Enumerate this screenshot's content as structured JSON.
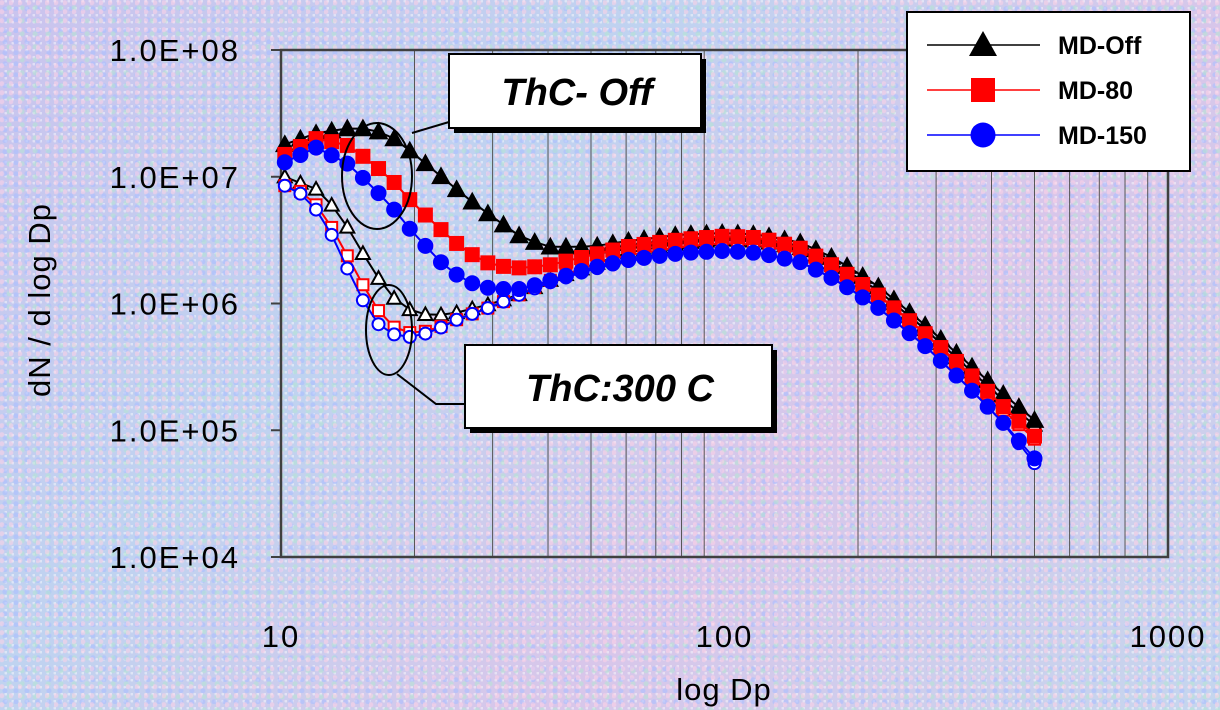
{
  "chart_data": {
    "type": "line",
    "xlabel": "log Dp",
    "ylabel": "dN / d log Dp",
    "x_scale": "log",
    "y_scale": "log",
    "xlim": [
      10,
      1000
    ],
    "ylim": [
      10000,
      100000000
    ],
    "x_tick_values": [
      10,
      100,
      1000
    ],
    "x_tick_labels": [
      "10",
      "100",
      "1000"
    ],
    "y_tick_values": [
      10000,
      100000,
      1000000,
      10000000,
      100000000
    ],
    "y_tick_labels": [
      "1.0E+04",
      "1.0E+05",
      "1.0E+06",
      "1.0E+07",
      "1.0E+08"
    ],
    "grid": "vertical minor lines",
    "legend_position": "top-right",
    "legend": [
      "MD-Off",
      "MD-80",
      "MD-150"
    ],
    "annotations": [
      "ThC- Off",
      "ThC:300 C"
    ],
    "x_range": [
      10.2,
      500
    ],
    "n_points": 49,
    "series": [
      {
        "name": "MD-Off",
        "condition": "ThC- Off",
        "color": "#000000",
        "marker": "triangle",
        "filled": true,
        "knots": {
          "x": [
            10.2,
            12,
            14,
            16,
            18,
            20,
            23,
            26,
            30,
            35,
            40,
            50,
            60,
            80,
            100,
            120,
            150,
            180,
            220,
            280,
            350,
            420,
            500
          ],
          "y": [
            18000000,
            22000000,
            24000000,
            24000000,
            20000000,
            15000000,
            10000000,
            7000000,
            4800000,
            3300000,
            2800000,
            2800000,
            3100000,
            3500000,
            3600000,
            3500000,
            3000000,
            2200000,
            1400000,
            700000,
            350000,
            200000,
            120000
          ]
        }
      },
      {
        "name": "MD-80",
        "condition": "ThC- Off",
        "color": "#ff0000",
        "marker": "square",
        "filled": true,
        "knots": {
          "x": [
            10.2,
            12,
            14,
            16,
            18,
            20,
            23,
            26,
            30,
            35,
            40,
            50,
            60,
            80,
            100,
            120,
            150,
            180,
            220,
            280,
            350,
            420,
            500
          ],
          "y": [
            15000000,
            20000000,
            18000000,
            13000000,
            9000000,
            6000000,
            3800000,
            2600000,
            2000000,
            1900000,
            2000000,
            2400000,
            2800000,
            3200000,
            3400000,
            3300000,
            2700000,
            1900000,
            1200000,
            600000,
            300000,
            160000,
            90000
          ]
        }
      },
      {
        "name": "MD-150",
        "condition": "ThC- Off",
        "color": "#0000ff",
        "marker": "circle",
        "filled": true,
        "knots": {
          "x": [
            10.2,
            12,
            14,
            16,
            18,
            20,
            23,
            26,
            30,
            35,
            40,
            50,
            60,
            80,
            100,
            120,
            150,
            180,
            220,
            280,
            350,
            420,
            500
          ],
          "y": [
            13000000,
            17000000,
            13000000,
            8500000,
            5500000,
            3500000,
            2100000,
            1500000,
            1300000,
            1300000,
            1500000,
            1900000,
            2200000,
            2500000,
            2600000,
            2500000,
            2100000,
            1500000,
            950000,
            480000,
            230000,
            120000,
            60000
          ]
        }
      },
      {
        "name": "MD-Off",
        "condition": "ThC:300 C",
        "color": "#000000",
        "marker": "triangle",
        "filled": false,
        "knots": {
          "x": [
            10.2,
            11,
            12,
            13,
            14,
            15,
            16,
            17,
            18,
            19,
            20,
            22,
            25,
            30,
            35,
            40,
            50,
            60,
            80,
            100,
            120,
            150,
            180,
            220,
            280,
            350,
            420,
            500
          ],
          "y": [
            10000000,
            9000000,
            8000000,
            6000000,
            4200000,
            2800000,
            1900000,
            1400000,
            1100000,
            950000,
            850000,
            800000,
            850000,
            1000000,
            1200000,
            1500000,
            2000000,
            2500000,
            3000000,
            3200000,
            3100000,
            2700000,
            2000000,
            1300000,
            650000,
            320000,
            180000,
            110000
          ]
        }
      },
      {
        "name": "MD-80",
        "condition": "ThC:300 C",
        "color": "#ff0000",
        "marker": "square",
        "filled": false,
        "knots": {
          "x": [
            10.2,
            11,
            12,
            13,
            14,
            15,
            16,
            17,
            18,
            19,
            20,
            22,
            25,
            30,
            35,
            40,
            50,
            60,
            80,
            100,
            120,
            150,
            180,
            220,
            280,
            350,
            420,
            500
          ],
          "y": [
            8500000,
            7800000,
            6000000,
            4000000,
            2500000,
            1600000,
            1050000,
            780000,
            650000,
            600000,
            580000,
            620000,
            750000,
            950000,
            1200000,
            1500000,
            2000000,
            2400000,
            2800000,
            3000000,
            2900000,
            2500000,
            1800000,
            1200000,
            600000,
            290000,
            150000,
            85000
          ]
        }
      },
      {
        "name": "MD-150",
        "condition": "ThC:300 C",
        "color": "#0000ff",
        "marker": "circle",
        "filled": false,
        "knots": {
          "x": [
            10.2,
            11,
            12,
            13,
            14,
            15,
            16,
            17,
            18,
            19,
            20,
            22,
            25,
            30,
            35,
            40,
            50,
            60,
            80,
            100,
            120,
            150,
            180,
            220,
            280,
            350,
            420,
            500
          ],
          "y": [
            8500000,
            7500000,
            5500000,
            3500000,
            2000000,
            1200000,
            800000,
            620000,
            570000,
            540000,
            550000,
            600000,
            750000,
            950000,
            1200000,
            1450000,
            1850000,
            2150000,
            2500000,
            2600000,
            2500000,
            2100000,
            1500000,
            950000,
            480000,
            230000,
            120000,
            55000
          ]
        }
      }
    ]
  },
  "colors": {
    "background": "#c9c6ec",
    "md_off": "#000000",
    "md_80": "#ff0000",
    "md_150": "#0000ff"
  }
}
